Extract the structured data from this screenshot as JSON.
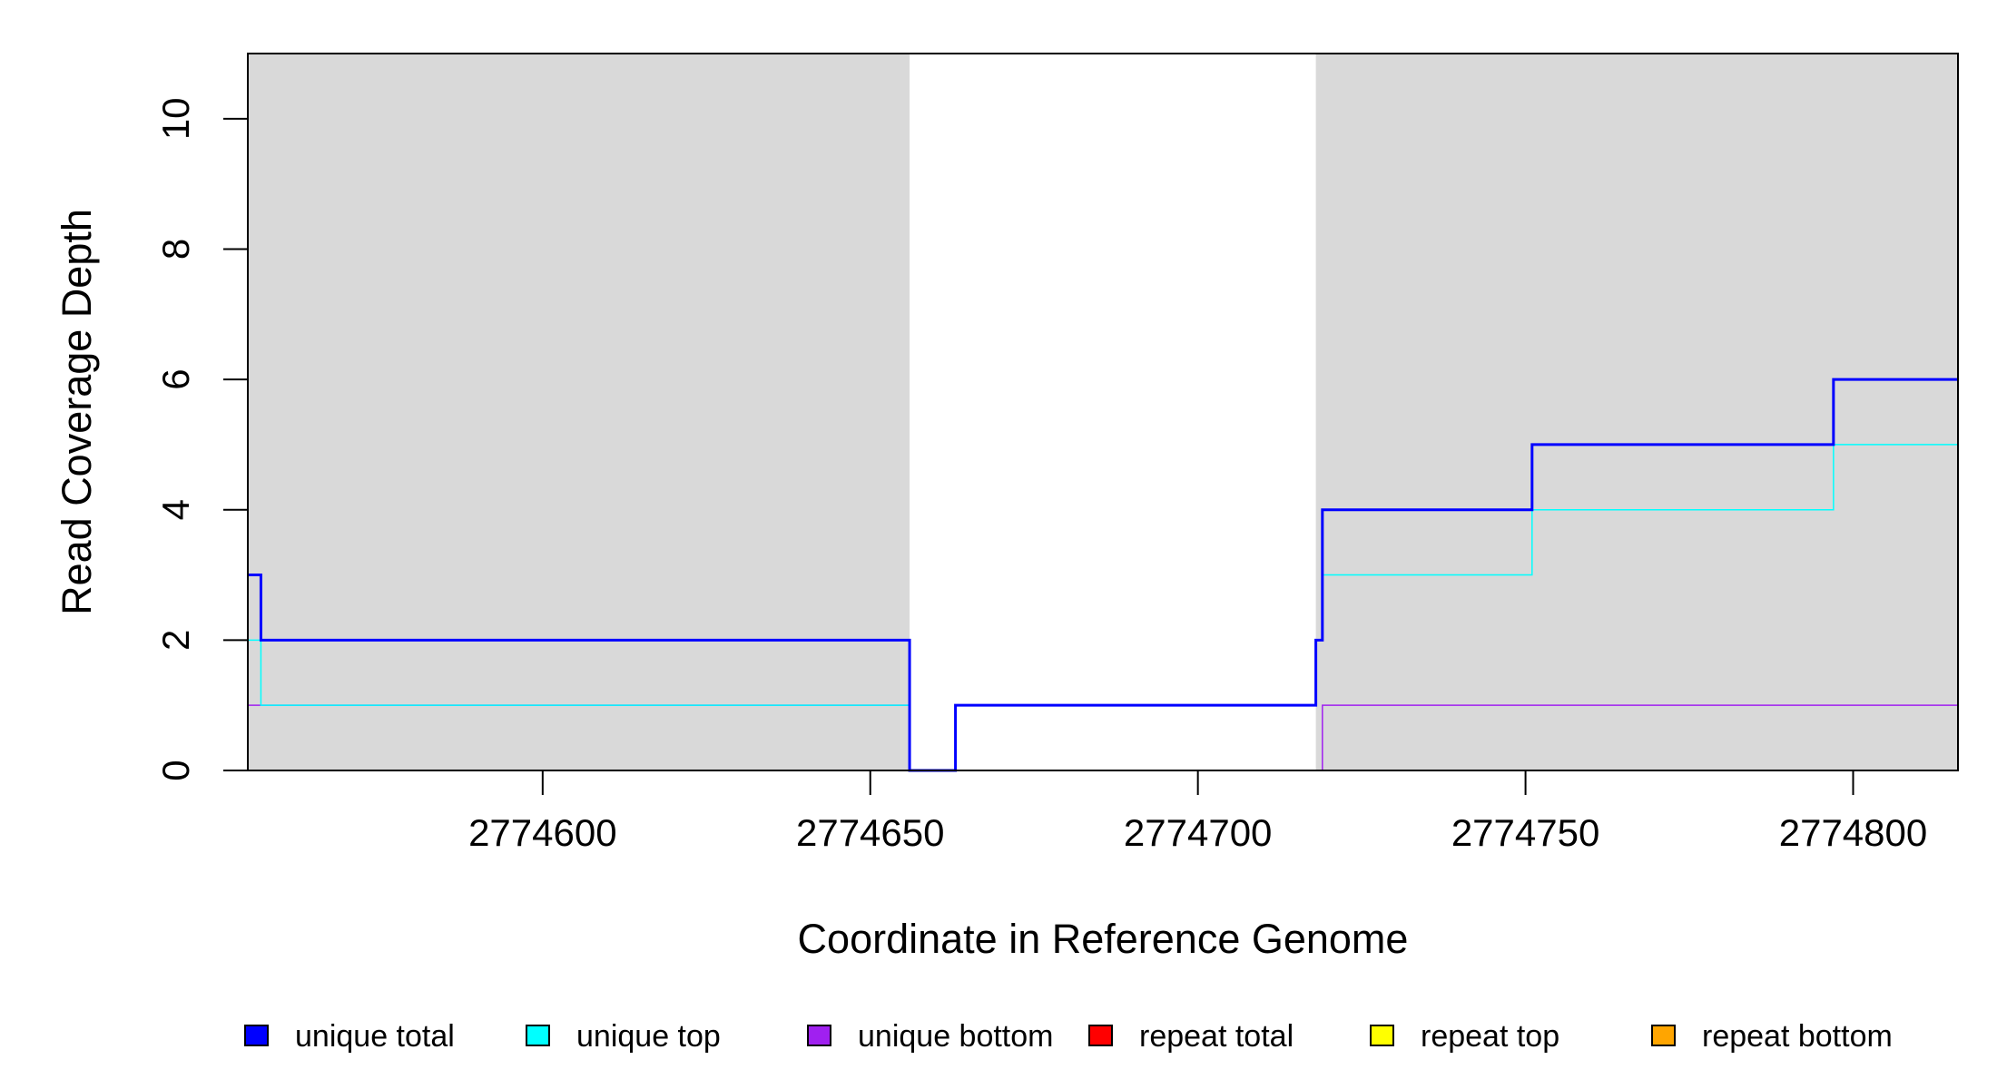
{
  "chart_data": {
    "type": "line",
    "step": true,
    "title": "",
    "xlabel": "Coordinate in Reference Genome",
    "ylabel": "Read Coverage Depth",
    "xlim": [
      2774555,
      2774816
    ],
    "ylim": [
      0,
      11
    ],
    "x_ticks": [
      2774600,
      2774650,
      2774700,
      2774750,
      2774800
    ],
    "y_ticks": [
      0,
      2,
      4,
      6,
      8,
      10
    ],
    "shaded_regions": [
      {
        "x0": 2774555,
        "x1": 2774656,
        "color": "#d9d9d9"
      },
      {
        "x0": 2774718,
        "x1": 2774816,
        "color": "#d9d9d9"
      }
    ],
    "series": [
      {
        "name": "unique total",
        "color": "#0000ff",
        "width": 3,
        "x": [
          2774555,
          2774557,
          2774656,
          2774663,
          2774718,
          2774719,
          2774751,
          2774797
        ],
        "values": [
          3,
          2,
          0,
          1,
          2,
          4,
          5,
          6
        ]
      },
      {
        "name": "unique top",
        "color": "#00ffff",
        "width": 1.5,
        "x": [
          2774555,
          2774557,
          2774656,
          2774663,
          2774718,
          2774719,
          2774751,
          2774797
        ],
        "values": [
          2,
          1,
          0,
          1,
          2,
          3,
          4,
          5
        ]
      },
      {
        "name": "unique bottom",
        "color": "#a020f0",
        "width": 1.5,
        "x": [
          2774555,
          2774656,
          2774719
        ],
        "values": [
          1,
          0,
          1
        ]
      },
      {
        "name": "repeat total",
        "color": "#ff0000",
        "width": 1.5,
        "x": [
          2774555
        ],
        "values": [
          0
        ]
      },
      {
        "name": "repeat top",
        "color": "#ffff00",
        "width": 1.5,
        "x": [
          2774555
        ],
        "values": [
          0
        ]
      },
      {
        "name": "repeat bottom",
        "color": "#ffa500",
        "width": 2,
        "x": [
          2774555
        ],
        "values": [
          0
        ]
      }
    ],
    "legend_position": "bottom"
  }
}
